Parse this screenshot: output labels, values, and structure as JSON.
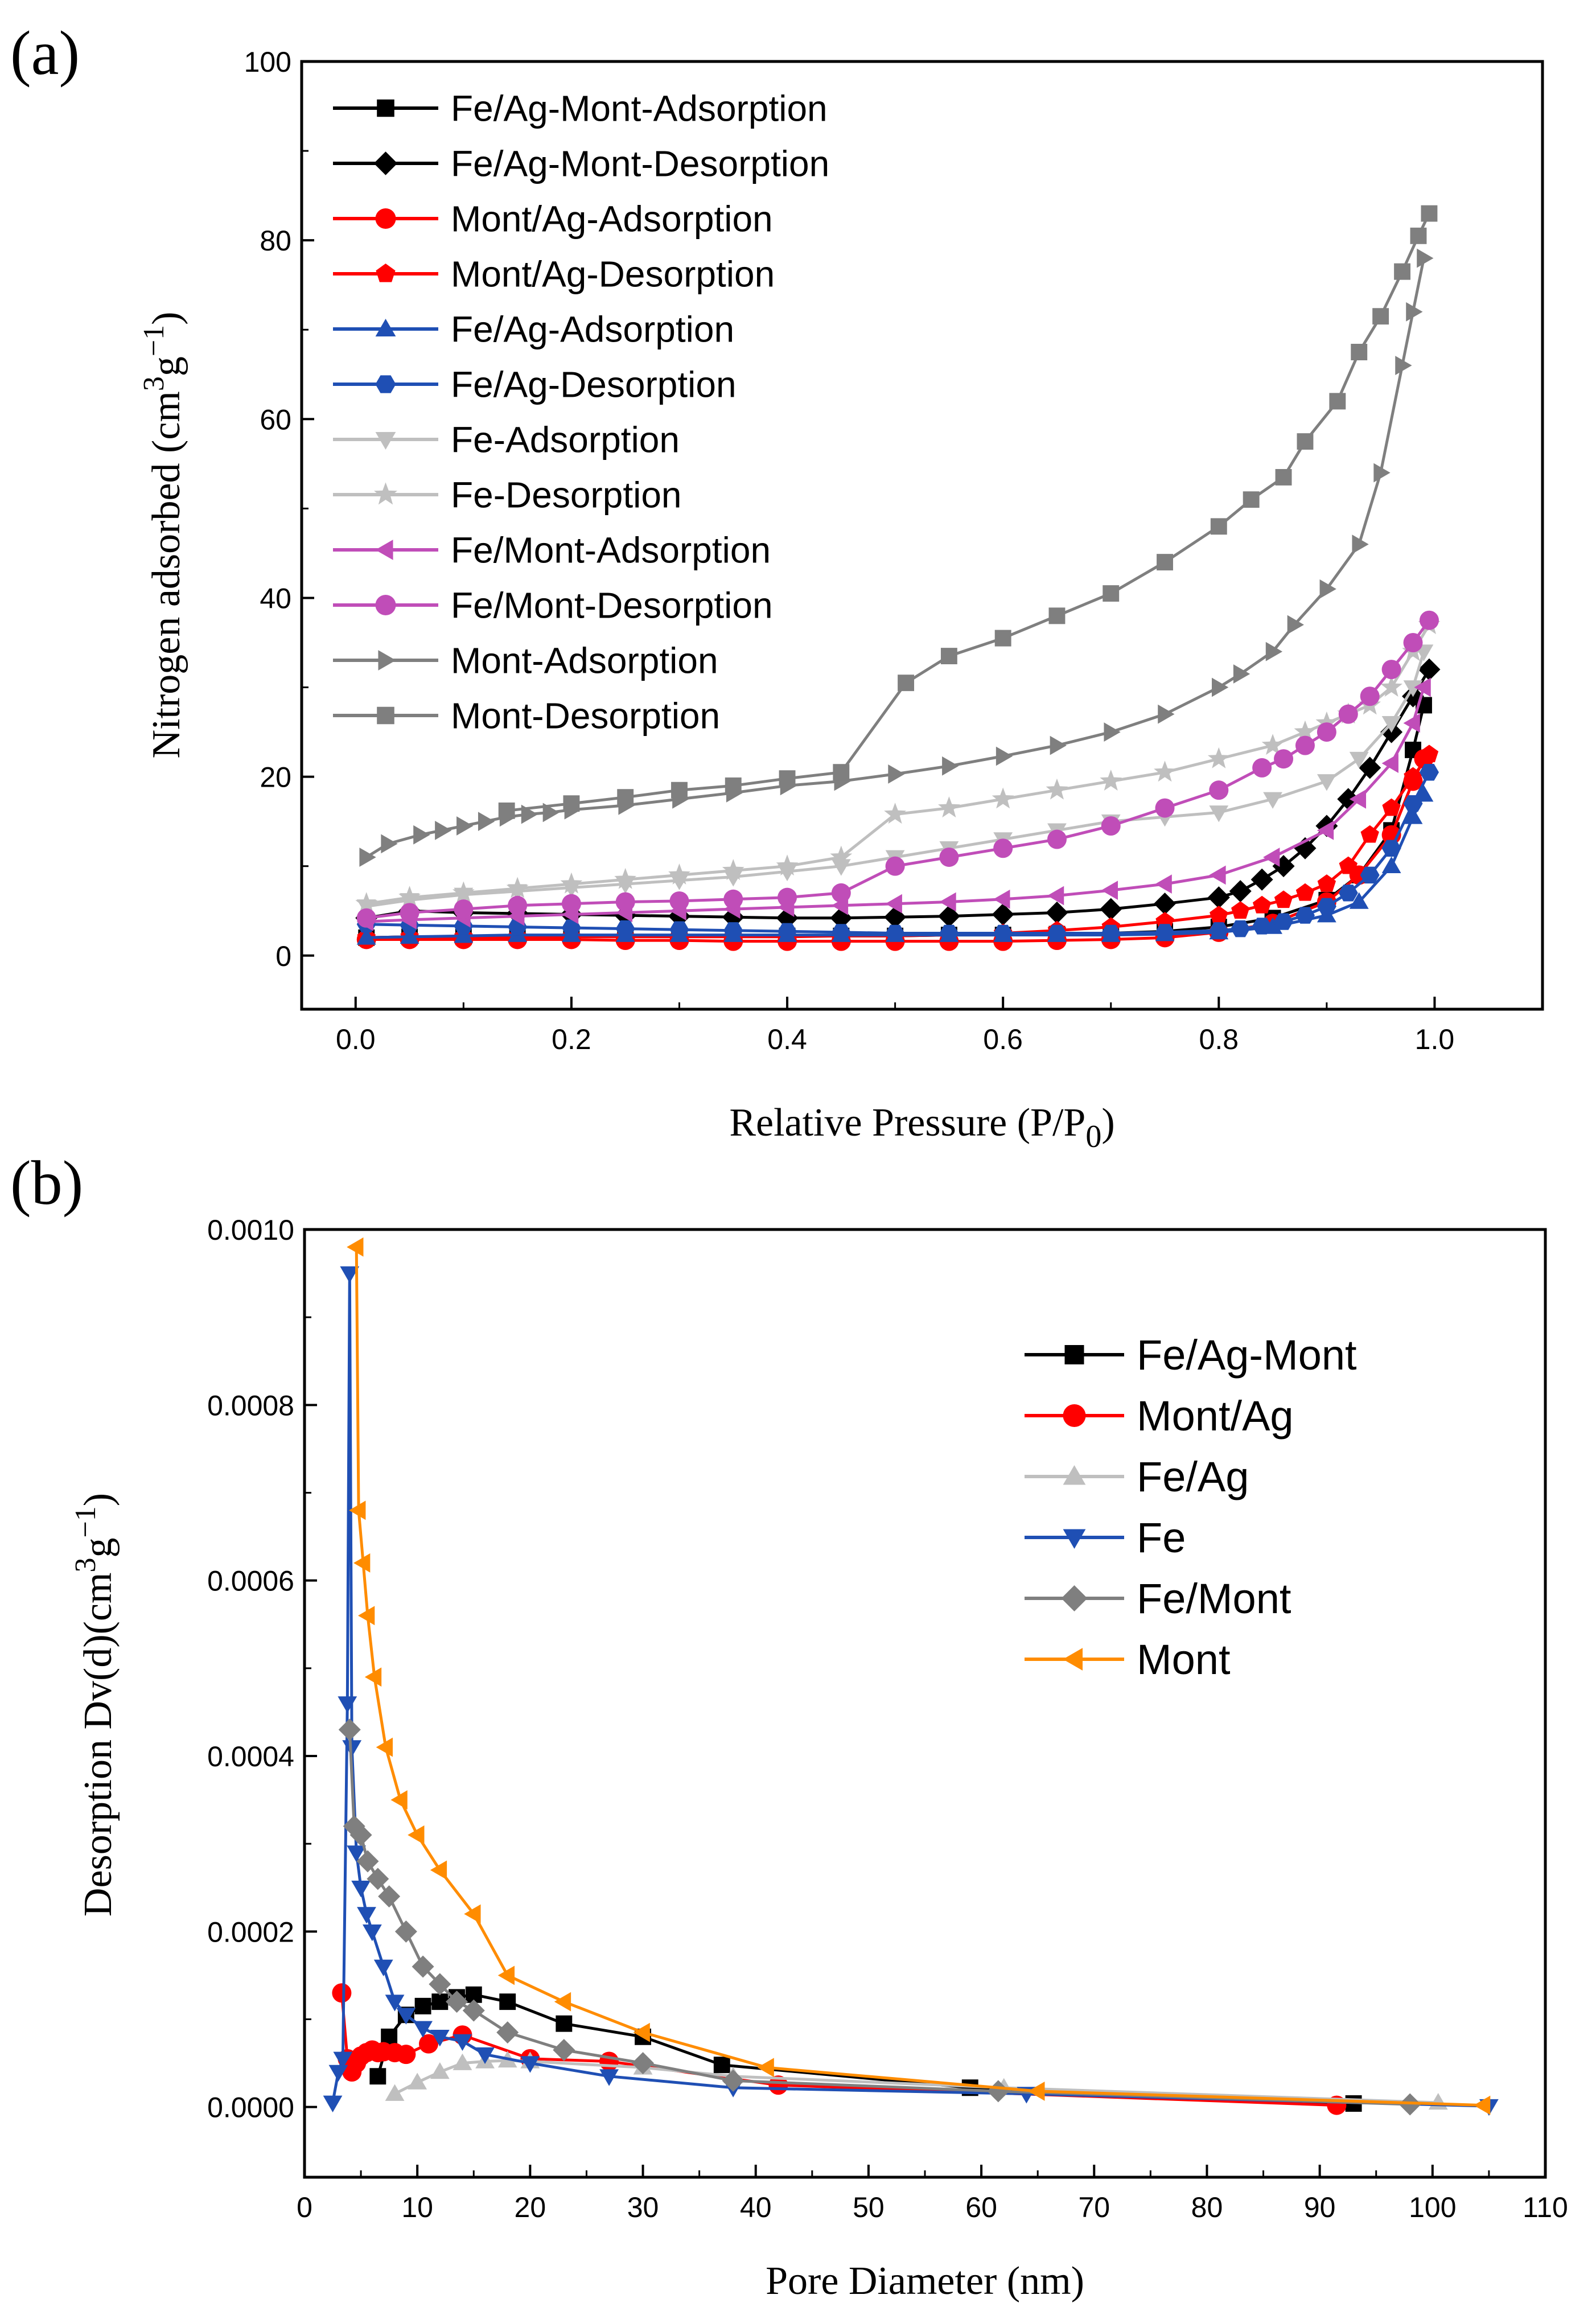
{
  "colors": {
    "black": "#000000",
    "red": "#ff0000",
    "blue": "#1f4fb4",
    "lightgray": "#bfbfbf",
    "magenta": "#c04db8",
    "gray": "#7f7f7f",
    "orange": "#ff8c00"
  },
  "chart_data": [
    {
      "panel_label": "(a)",
      "type": "line",
      "xlabel": "Relative Pressure (P/P",
      "xlabel_sub": "0",
      "xlabel_close": ")",
      "ylabel": "Nitrogen adsorbed (cm",
      "ylabel_sup3": "3",
      "ylabel_g": "g",
      "ylabel_supm1": "−1",
      "ylabel_close": ")",
      "xlim": [
        -0.05,
        1.1
      ],
      "ylim": [
        -6,
        100
      ],
      "xticks": [
        "0.0",
        "0.2",
        "0.4",
        "0.6",
        "0.8",
        "1.0"
      ],
      "xtick_values": [
        0,
        0.2,
        0.4,
        0.6,
        0.8,
        1.0
      ],
      "yticks": [
        "0",
        "20",
        "40",
        "60",
        "80",
        "100"
      ],
      "ytick_values": [
        0,
        20,
        40,
        60,
        80,
        100
      ],
      "legend_position": "top-left",
      "series": [
        {
          "name": "Fe/Ag-Mont-Adsorption",
          "color": "#000000",
          "marker": "square",
          "x": [
            0.01,
            0.05,
            0.1,
            0.15,
            0.2,
            0.25,
            0.3,
            0.35,
            0.4,
            0.45,
            0.5,
            0.55,
            0.6,
            0.65,
            0.7,
            0.75,
            0.8,
            0.85,
            0.9,
            0.93,
            0.96,
            0.98,
            0.99
          ],
          "y": [
            2.0,
            2.1,
            2.1,
            2.2,
            2.2,
            2.2,
            2.2,
            2.2,
            2.2,
            2.2,
            2.2,
            2.3,
            2.3,
            2.4,
            2.5,
            2.7,
            3.2,
            4.2,
            6.2,
            9.0,
            14.0,
            23.0,
            28.0
          ]
        },
        {
          "name": "Fe/Ag-Mont-Desorption",
          "color": "#000000",
          "marker": "diamond",
          "x": [
            0.995,
            0.98,
            0.96,
            0.94,
            0.92,
            0.9,
            0.88,
            0.86,
            0.84,
            0.82,
            0.8,
            0.75,
            0.7,
            0.65,
            0.6,
            0.55,
            0.5,
            0.45,
            0.4,
            0.35,
            0.3,
            0.25,
            0.2,
            0.15,
            0.1,
            0.05,
            0.01
          ],
          "y": [
            32,
            29,
            25,
            21,
            17.5,
            14.5,
            12,
            10,
            8.5,
            7.2,
            6.5,
            5.8,
            5.2,
            4.8,
            4.6,
            4.4,
            4.3,
            4.2,
            4.2,
            4.3,
            4.4,
            4.5,
            4.6,
            4.7,
            4.8,
            5.0,
            4.2
          ]
        },
        {
          "name": "Mont/Ag-Adsorption",
          "color": "#ff0000",
          "marker": "circle",
          "x": [
            0.01,
            0.05,
            0.1,
            0.15,
            0.2,
            0.25,
            0.3,
            0.35,
            0.4,
            0.45,
            0.5,
            0.55,
            0.6,
            0.65,
            0.7,
            0.75,
            0.8,
            0.85,
            0.9,
            0.93,
            0.96,
            0.98,
            0.99
          ],
          "y": [
            1.8,
            1.8,
            1.8,
            1.8,
            1.8,
            1.7,
            1.7,
            1.6,
            1.6,
            1.6,
            1.6,
            1.6,
            1.6,
            1.7,
            1.8,
            2.0,
            2.6,
            3.6,
            6.0,
            9.0,
            13.5,
            19.5,
            22.0
          ]
        },
        {
          "name": "Mont/Ag-Desorption",
          "color": "#ff0000",
          "marker": "pentagon",
          "x": [
            0.995,
            0.98,
            0.96,
            0.94,
            0.92,
            0.9,
            0.88,
            0.86,
            0.84,
            0.82,
            0.8,
            0.75,
            0.7,
            0.65,
            0.6,
            0.55,
            0.5,
            0.45,
            0.4,
            0.35,
            0.3,
            0.25,
            0.2,
            0.15,
            0.1,
            0.05,
            0.01
          ],
          "y": [
            22.5,
            20,
            16.5,
            13.5,
            10,
            8,
            7,
            6.2,
            5.6,
            5.0,
            4.5,
            3.8,
            3.2,
            2.8,
            2.5,
            2.3,
            2.2,
            2.2,
            2.1,
            2.1,
            2.1,
            2.1,
            2.1,
            2.1,
            2.1,
            2.1,
            2.0
          ]
        },
        {
          "name": "Fe/Ag-Adsorption",
          "color": "#1f4fb4",
          "marker": "triangle-up",
          "x": [
            0.01,
            0.05,
            0.1,
            0.15,
            0.2,
            0.25,
            0.3,
            0.35,
            0.4,
            0.45,
            0.5,
            0.55,
            0.6,
            0.65,
            0.7,
            0.75,
            0.8,
            0.85,
            0.9,
            0.93,
            0.96,
            0.98,
            0.99
          ],
          "y": [
            2.0,
            2.1,
            2.2,
            2.3,
            2.3,
            2.3,
            2.3,
            2.3,
            2.3,
            2.3,
            2.3,
            2.3,
            2.3,
            2.3,
            2.3,
            2.4,
            2.6,
            3.2,
            4.5,
            6.0,
            10.0,
            15.5,
            18.0
          ]
        },
        {
          "name": "Fe/Ag-Desorption",
          "color": "#1f4fb4",
          "marker": "hexagon",
          "x": [
            0.995,
            0.98,
            0.96,
            0.94,
            0.92,
            0.9,
            0.88,
            0.86,
            0.84,
            0.82,
            0.8,
            0.75,
            0.7,
            0.65,
            0.6,
            0.55,
            0.5,
            0.45,
            0.4,
            0.35,
            0.3,
            0.25,
            0.2,
            0.15,
            0.1,
            0.05,
            0.01
          ],
          "y": [
            20.5,
            17,
            12,
            9,
            7,
            5.5,
            4.5,
            3.8,
            3.3,
            3.0,
            2.8,
            2.6,
            2.5,
            2.5,
            2.5,
            2.5,
            2.5,
            2.6,
            2.7,
            2.8,
            2.9,
            3.0,
            3.1,
            3.2,
            3.3,
            3.4,
            3.5
          ]
        },
        {
          "name": "Fe-Adsorption",
          "color": "#bfbfbf",
          "marker": "triangle-down",
          "x": [
            0.01,
            0.05,
            0.1,
            0.15,
            0.2,
            0.25,
            0.3,
            0.35,
            0.4,
            0.45,
            0.5,
            0.55,
            0.6,
            0.65,
            0.7,
            0.75,
            0.8,
            0.85,
            0.9,
            0.93,
            0.96,
            0.98,
            0.99
          ],
          "y": [
            5.5,
            6.2,
            6.8,
            7.2,
            7.6,
            8.0,
            8.4,
            8.8,
            9.4,
            10.0,
            11.0,
            12.0,
            13.0,
            14.0,
            15.0,
            15.5,
            16.0,
            17.5,
            19.5,
            22.0,
            26.0,
            30.0,
            34.0
          ]
        },
        {
          "name": "Fe-Desorption",
          "color": "#bfbfbf",
          "marker": "star",
          "x": [
            0.995,
            0.98,
            0.96,
            0.94,
            0.92,
            0.9,
            0.88,
            0.85,
            0.8,
            0.75,
            0.7,
            0.65,
            0.6,
            0.55,
            0.5,
            0.45,
            0.4,
            0.35,
            0.3,
            0.25,
            0.2,
            0.15,
            0.1,
            0.05,
            0.01
          ],
          "y": [
            37,
            34,
            30,
            28,
            27,
            26,
            25,
            23.5,
            22.0,
            20.5,
            19.5,
            18.5,
            17.5,
            16.5,
            15.8,
            11.0,
            10.0,
            9.5,
            9.0,
            8.5,
            8.0,
            7.5,
            7.0,
            6.5,
            5.8
          ]
        },
        {
          "name": "Fe/Mont-Adsorption",
          "color": "#c04db8",
          "marker": "triangle-left",
          "x": [
            0.01,
            0.05,
            0.1,
            0.15,
            0.2,
            0.25,
            0.3,
            0.35,
            0.4,
            0.45,
            0.5,
            0.55,
            0.6,
            0.65,
            0.7,
            0.75,
            0.8,
            0.85,
            0.9,
            0.93,
            0.96,
            0.98,
            0.99
          ],
          "y": [
            3.8,
            4.0,
            4.2,
            4.4,
            4.6,
            4.8,
            5.0,
            5.2,
            5.4,
            5.6,
            5.8,
            6.0,
            6.3,
            6.7,
            7.3,
            8.0,
            9.0,
            11.0,
            14.0,
            17.5,
            21.5,
            26.0,
            30.0
          ]
        },
        {
          "name": "Fe/Mont-Desorption",
          "color": "#c04db8",
          "marker": "circle",
          "x": [
            0.995,
            0.98,
            0.96,
            0.94,
            0.92,
            0.9,
            0.88,
            0.86,
            0.84,
            0.8,
            0.75,
            0.7,
            0.65,
            0.6,
            0.55,
            0.5,
            0.45,
            0.4,
            0.35,
            0.3,
            0.25,
            0.2,
            0.15,
            0.1,
            0.05,
            0.01
          ],
          "y": [
            37.5,
            35,
            32,
            29,
            27,
            25,
            23.5,
            22,
            21,
            18.5,
            16.5,
            14.5,
            13,
            12,
            11,
            10,
            7,
            6.5,
            6.3,
            6.1,
            6.0,
            5.8,
            5.6,
            5.2,
            4.8,
            4.2
          ]
        },
        {
          "name": "Mont-Adsorption",
          "color": "#7f7f7f",
          "marker": "triangle-right",
          "x": [
            0.01,
            0.03,
            0.06,
            0.08,
            0.1,
            0.12,
            0.14,
            0.16,
            0.18,
            0.2,
            0.25,
            0.3,
            0.35,
            0.4,
            0.45,
            0.5,
            0.55,
            0.6,
            0.65,
            0.7,
            0.75,
            0.8,
            0.82,
            0.85,
            0.87,
            0.9,
            0.93,
            0.95,
            0.97,
            0.98,
            0.99
          ],
          "y": [
            11.0,
            12.5,
            13.5,
            14.0,
            14.5,
            15.0,
            15.5,
            15.8,
            16.0,
            16.3,
            16.8,
            17.5,
            18.2,
            19.0,
            19.5,
            20.3,
            21.2,
            22.3,
            23.5,
            25.0,
            27.0,
            30.0,
            31.5,
            34.0,
            37.0,
            41.0,
            46.0,
            54.0,
            66.0,
            72.0,
            78.0
          ]
        },
        {
          "name": "Mont-Desorption",
          "color": "#7f7f7f",
          "marker": "square",
          "x": [
            0.995,
            0.985,
            0.97,
            0.95,
            0.93,
            0.91,
            0.88,
            0.86,
            0.83,
            0.8,
            0.75,
            0.7,
            0.65,
            0.6,
            0.55,
            0.51,
            0.45,
            0.4,
            0.35,
            0.3,
            0.25,
            0.2,
            0.14
          ],
          "y": [
            83.0,
            80.5,
            76.5,
            71.5,
            67.5,
            62.0,
            57.5,
            53.5,
            51.0,
            48.0,
            44.0,
            40.5,
            38.0,
            35.5,
            33.5,
            30.5,
            20.5,
            19.8,
            19.0,
            18.5,
            17.7,
            17.0,
            16.2
          ]
        }
      ]
    },
    {
      "panel_label": "(b)",
      "type": "line",
      "xlabel": "Pore Diameter (nm)",
      "ylabel": "Desorption Dv(d)(cm",
      "ylabel_sup3": "3",
      "ylabel_g": "g",
      "ylabel_supm1": "−1",
      "ylabel_close": ")",
      "xlim": [
        0,
        110
      ],
      "ylim": [
        -8e-05,
        0.001
      ],
      "xticks": [
        "0",
        "10",
        "20",
        "30",
        "40",
        "50",
        "60",
        "70",
        "80",
        "90",
        "100",
        "110"
      ],
      "xtick_values": [
        0,
        10,
        20,
        30,
        40,
        50,
        60,
        70,
        80,
        90,
        100,
        110
      ],
      "yticks": [
        "0.0000",
        "0.0002",
        "0.0004",
        "0.0006",
        "0.0008",
        "0.0010"
      ],
      "ytick_values": [
        0,
        0.0002,
        0.0004,
        0.0006,
        0.0008,
        0.001
      ],
      "legend_position": "top-right",
      "series": [
        {
          "name": "Fe/Ag-Mont",
          "color": "#000000",
          "marker": "square",
          "x": [
            6.5,
            7.5,
            9,
            10.5,
            12,
            13.5,
            15,
            18,
            23,
            30,
            37,
            59,
            93
          ],
          "y": [
            3.5e-05,
            8e-05,
            0.000105,
            0.000115,
            0.00012,
            0.000125,
            0.000128,
            0.00012,
            9.5e-05,
            8e-05,
            4.8e-05,
            2.2e-05,
            4e-06
          ]
        },
        {
          "name": "Mont/Ag",
          "color": "#ff0000",
          "marker": "circle",
          "x": [
            3.3,
            3.8,
            4.2,
            4.6,
            5.0,
            5.5,
            6.0,
            6.5,
            7.0,
            8.0,
            9.0,
            11.0,
            14.0,
            20.0,
            27.0,
            42.0,
            91.5
          ],
          "y": [
            0.00013,
            5.5e-05,
            4e-05,
            5e-05,
            5.8e-05,
            6.2e-05,
            6.5e-05,
            6.2e-05,
            6.3e-05,
            6.2e-05,
            6e-05,
            7.2e-05,
            8.2e-05,
            5.5e-05,
            5.2e-05,
            2.5e-05,
            2e-06
          ]
        },
        {
          "name": "Fe/Ag",
          "color": "#bfbfbf",
          "marker": "triangle-up",
          "x": [
            8,
            10,
            12,
            14,
            16,
            18,
            20,
            30,
            38,
            62,
            100.5
          ],
          "y": [
            1.5e-05,
            2.8e-05,
            4e-05,
            5e-05,
            5.2e-05,
            5.3e-05,
            5.2e-05,
            4.5e-05,
            3.5e-05,
            2.2e-05,
            5e-06
          ]
        },
        {
          "name": "Fe",
          "color": "#1f4fb4",
          "marker": "triangle-down",
          "x": [
            2.5,
            3.0,
            3.4,
            3.8,
            4.0,
            4.2,
            4.6,
            5.0,
            5.5,
            6.0,
            7.0,
            8.0,
            9.0,
            10.5,
            12.0,
            14.0,
            16.0,
            20.0,
            27.0,
            38.0,
            64.0,
            105.0
          ],
          "y": [
            5e-06,
            4e-05,
            5.5e-05,
            0.00046,
            0.00095,
            0.00041,
            0.00029,
            0.00025,
            0.00022,
            0.0002,
            0.00016,
            0.00012,
            0.000105,
            9e-05,
            8e-05,
            7.5e-05,
            6e-05,
            5e-05,
            3.5e-05,
            2.2e-05,
            1.5e-05,
            1e-06
          ]
        },
        {
          "name": "Fe/Mont",
          "color": "#7f7f7f",
          "marker": "diamond",
          "x": [
            4.0,
            4.4,
            5.0,
            5.6,
            6.5,
            7.5,
            9.0,
            10.5,
            12.0,
            13.5,
            15.0,
            18.0,
            23.0,
            30.0,
            38.0,
            61.5,
            98.0
          ],
          "y": [
            0.00043,
            0.00032,
            0.00031,
            0.00028,
            0.00026,
            0.00024,
            0.0002,
            0.00016,
            0.00014,
            0.00012,
            0.00011,
            8.5e-05,
            6.5e-05,
            5e-05,
            3e-05,
            1.8e-05,
            3e-06
          ]
        },
        {
          "name": "Mont",
          "color": "#ff8c00",
          "marker": "triangle-left",
          "x": [
            4.6,
            4.8,
            5.2,
            5.6,
            6.2,
            7.2,
            8.5,
            10.0,
            12.0,
            15.0,
            18.0,
            23.0,
            30.0,
            41.0,
            65.0,
            104.5
          ],
          "y": [
            0.00098,
            0.00068,
            0.00062,
            0.00056,
            0.00049,
            0.00041,
            0.00035,
            0.00031,
            0.00027,
            0.00022,
            0.00015,
            0.00012,
            8.5e-05,
            4.5e-05,
            1.8e-05,
            2e-06
          ]
        }
      ]
    }
  ]
}
